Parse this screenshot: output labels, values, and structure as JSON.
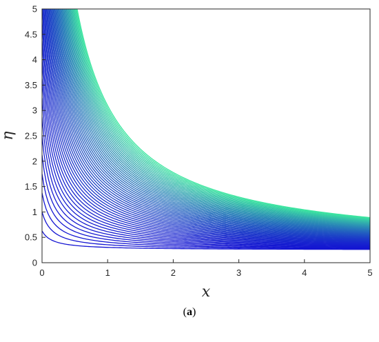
{
  "chart_data": {
    "type": "line",
    "title": "",
    "xlabel": "x",
    "ylabel": "η",
    "xlim": [
      0,
      5
    ],
    "ylim": [
      0,
      5
    ],
    "xticks": [
      "0",
      "1",
      "2",
      "3",
      "4",
      "5"
    ],
    "yticks": [
      "0",
      "0.5",
      "1",
      "1.5",
      "2",
      "2.5",
      "3",
      "3.5",
      "4",
      "4.5",
      "5"
    ],
    "grid": false,
    "legend": "none",
    "series_description": "family of contour curves of the form η = c/(x + 0.16) + 0.25, c from 0.06 to ~3.3",
    "contour_levels": [
      0.06,
      0.12,
      0.18,
      0.24,
      0.3,
      0.36,
      0.42,
      0.48,
      0.54,
      0.6,
      0.66,
      0.72,
      0.78,
      0.84,
      0.9,
      0.96,
      1.02,
      1.08,
      1.14,
      1.2,
      1.26,
      1.32,
      1.38,
      1.44,
      1.5,
      1.56,
      1.62,
      1.68,
      1.74,
      1.8,
      1.86,
      1.92,
      1.98,
      2.04,
      2.1,
      2.16,
      2.22,
      2.28,
      2.34,
      2.4,
      2.46,
      2.52,
      2.58,
      2.64,
      2.7,
      2.76,
      2.82,
      2.88,
      2.94,
      3.0,
      3.06,
      3.12,
      3.18,
      3.24,
      3.3
    ],
    "colors": {
      "low": "#1414d2",
      "high": "#3ce6a0"
    }
  },
  "caption": {
    "open": "(",
    "label": "a",
    "close": ")"
  }
}
